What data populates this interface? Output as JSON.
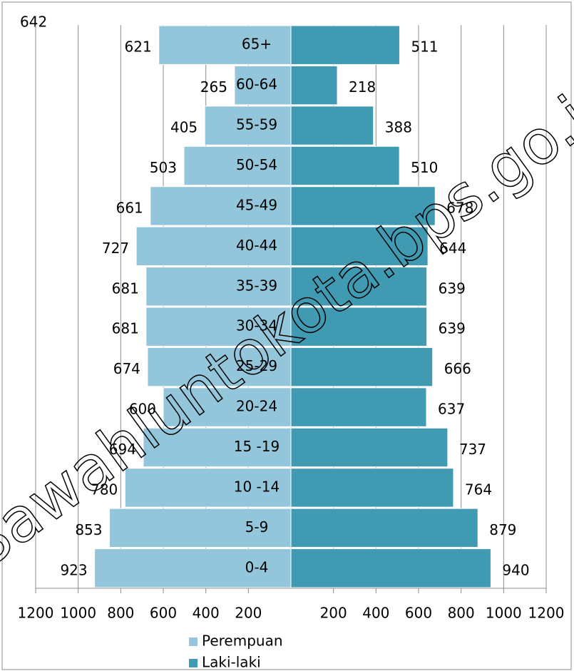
{
  "chart_data": {
    "type": "pyramid",
    "annotation": "642",
    "watermark": "Sawahluntokota.bps.go.id",
    "categories": [
      "65+",
      "60-64",
      "55-59",
      "50-54",
      "45-49",
      "40-44",
      "35-39",
      "30-34",
      "25-29",
      "20-24",
      "15 -19",
      "10 -14",
      "5-9",
      "0-4"
    ],
    "series": [
      {
        "name": "Perempuan",
        "color": "#93c6da",
        "side": "left",
        "values": [
          621,
          265,
          405,
          503,
          661,
          727,
          681,
          681,
          674,
          600,
          694,
          780,
          853,
          923
        ]
      },
      {
        "name": "Laki-laki",
        "color": "#3f9ab2",
        "side": "right",
        "values": [
          511,
          218,
          388,
          510,
          678,
          644,
          639,
          639,
          666,
          637,
          737,
          764,
          879,
          940
        ]
      }
    ],
    "xlim": [
      -1200,
      1200
    ],
    "xticks": [
      {
        "value": -1200,
        "label": "1200"
      },
      {
        "value": -1000,
        "label": "1000"
      },
      {
        "value": -800,
        "label": "800"
      },
      {
        "value": -600,
        "label": "600"
      },
      {
        "value": -400,
        "label": "400"
      },
      {
        "value": -200,
        "label": "200"
      },
      200,
      400,
      600,
      800,
      1000,
      1200
    ],
    "grid": true,
    "legend": "bottom"
  }
}
